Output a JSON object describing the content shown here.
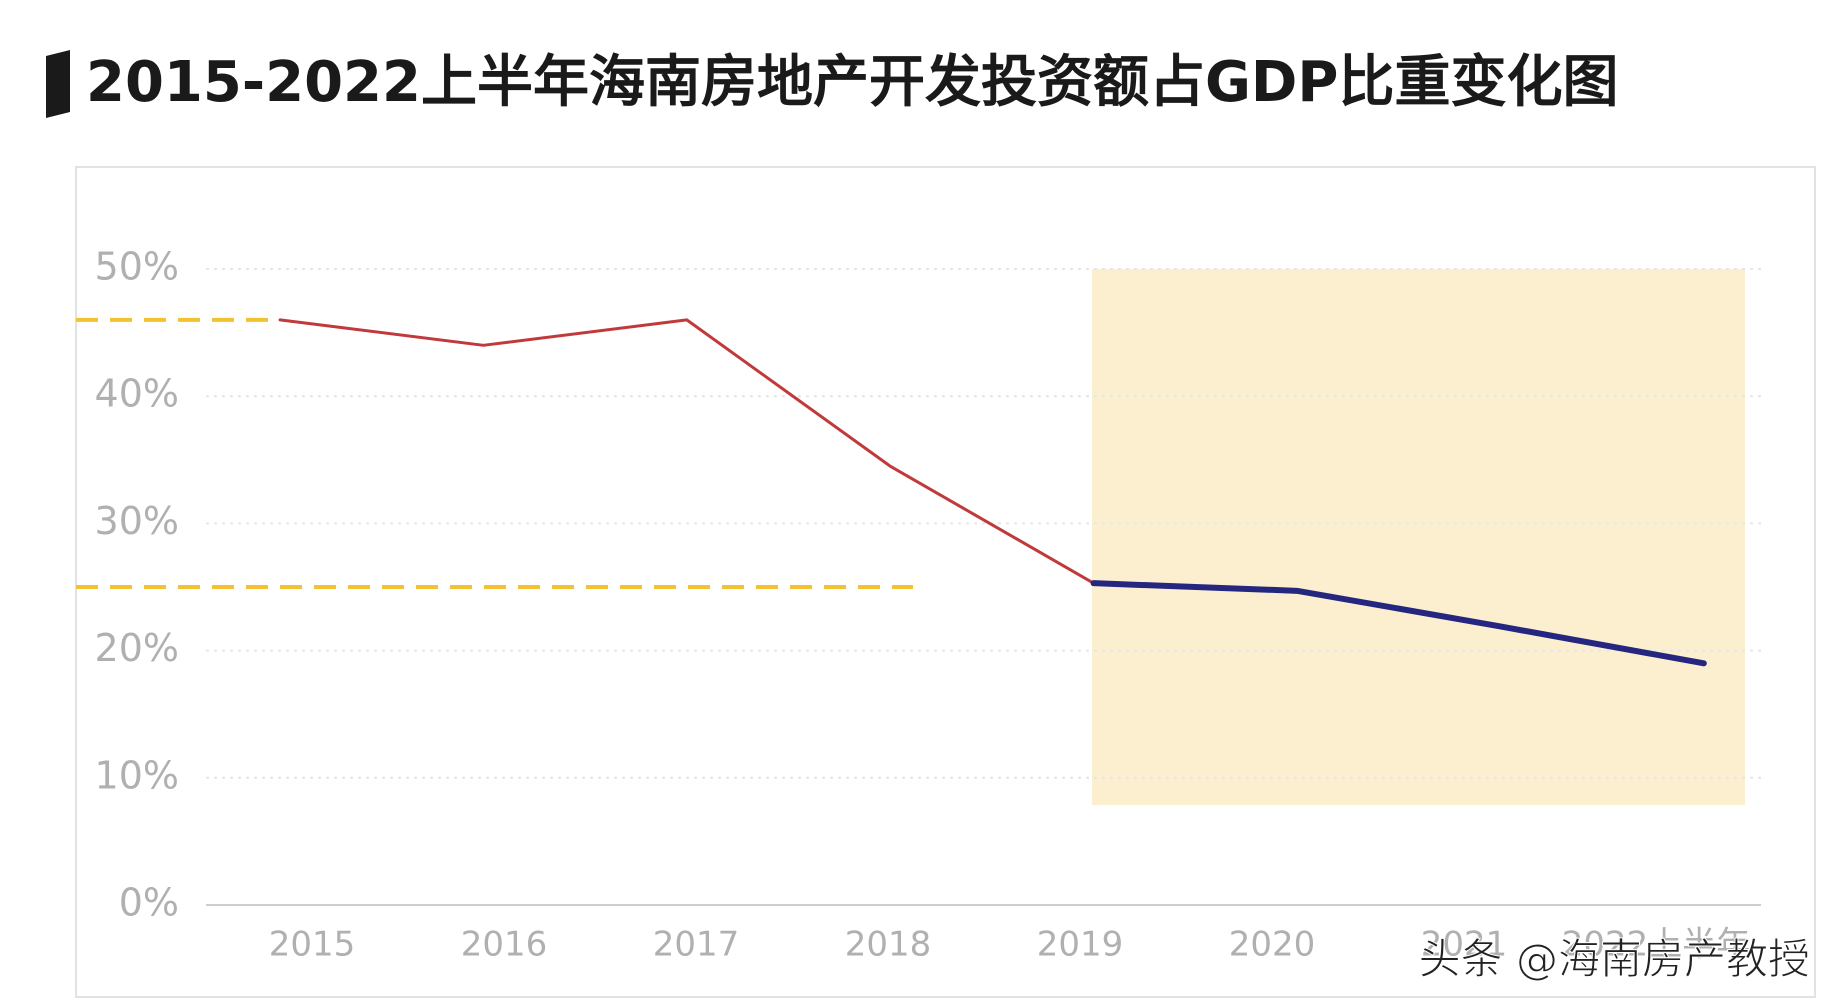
{
  "chart_data": {
    "type": "line",
    "title": "2015-2022上半年海南房地产开发投资额占GDP比重变化图",
    "categories": [
      "2015",
      "2016",
      "2017",
      "2018",
      "2019",
      "2020",
      "2021",
      "2022上半年"
    ],
    "series": [
      {
        "color": "#c0393b",
        "width": 3,
        "values": [
          46,
          44,
          46,
          34.5,
          25.3,
          null,
          null,
          null
        ]
      },
      {
        "color": "#24267f",
        "width": 6,
        "values": [
          null,
          null,
          null,
          null,
          25.3,
          24.7,
          21.9,
          19
        ]
      }
    ],
    "reference_lines": [
      {
        "value": 46,
        "color": "#f2c230"
      },
      {
        "value": 25,
        "color": "#f2c230"
      }
    ],
    "highlight_color": "#fcefcf",
    "ylim": [
      0,
      50
    ],
    "yticks": [
      {
        "value": 0,
        "label": "0%"
      },
      {
        "value": 10,
        "label": "10%"
      },
      {
        "value": 20,
        "label": "20%"
      },
      {
        "value": 30,
        "label": "30%"
      },
      {
        "value": 40,
        "label": "40%"
      },
      {
        "value": 50,
        "label": "50%"
      }
    ],
    "grid": true,
    "watermark": "头条 @海南房产教授"
  }
}
